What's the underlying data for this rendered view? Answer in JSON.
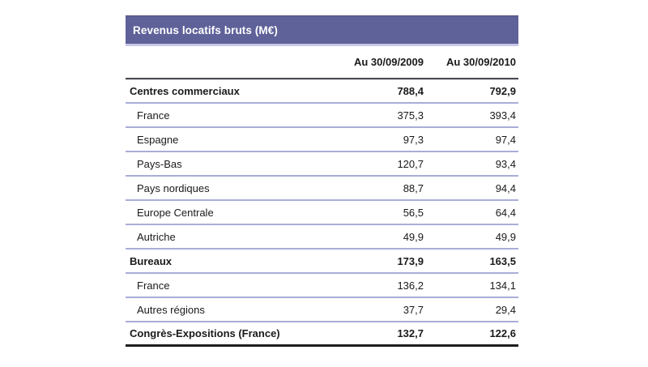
{
  "table": {
    "title": "Revenus locatifs bruts (M€)",
    "columns": [
      "Au 30/09/2009",
      "Au 30/09/2010"
    ],
    "rows": [
      {
        "label": "Centres commerciaux",
        "v2009": "788,4",
        "v2010": "792,9",
        "bold": true,
        "indent": false
      },
      {
        "label": "France",
        "v2009": "375,3",
        "v2010": "393,4",
        "bold": false,
        "indent": true
      },
      {
        "label": "Espagne",
        "v2009": "97,3",
        "v2010": "97,4",
        "bold": false,
        "indent": true
      },
      {
        "label": "Pays-Bas",
        "v2009": "120,7",
        "v2010": "93,4",
        "bold": false,
        "indent": true
      },
      {
        "label": "Pays nordiques",
        "v2009": "88,7",
        "v2010": "94,4",
        "bold": false,
        "indent": true
      },
      {
        "label": "Europe Centrale",
        "v2009": "56,5",
        "v2010": "64,4",
        "bold": false,
        "indent": true
      },
      {
        "label": "Autriche",
        "v2009": "49,9",
        "v2010": "49,9",
        "bold": false,
        "indent": true
      },
      {
        "label": "Bureaux",
        "v2009": "173,9",
        "v2010": "163,5",
        "bold": true,
        "indent": false
      },
      {
        "label": "France",
        "v2009": "136,2",
        "v2010": "134,1",
        "bold": false,
        "indent": true
      },
      {
        "label": "Autres régions",
        "v2009": "37,7",
        "v2010": "29,4",
        "bold": false,
        "indent": true
      },
      {
        "label": "Congrès-Expositions (France)",
        "v2009": "132,7",
        "v2010": "122,6",
        "bold": true,
        "indent": false
      }
    ]
  },
  "colors": {
    "title_bar_background": "#5f6199",
    "title_bar_border_top": "#50507c",
    "title_bar_border_bottom": "#c7c9e6",
    "title_text": "#ffffff",
    "header_rule": "#4b4b4b",
    "row_separator": "#a9aed8",
    "bottom_rule": "#1d1d1d",
    "body_text": "#1a1a1a"
  },
  "chart_data": {
    "type": "table",
    "title": "Revenus locatifs bruts (M€)",
    "columns": [
      "Au 30/09/2009",
      "Au 30/09/2010"
    ],
    "unit": "M€",
    "rows": [
      {
        "label": "Centres commerciaux",
        "values": [
          788.4,
          792.9
        ],
        "group_header": true
      },
      {
        "label": "France",
        "values": [
          375.3,
          393.4
        ],
        "group_header": false
      },
      {
        "label": "Espagne",
        "values": [
          97.3,
          97.4
        ],
        "group_header": false
      },
      {
        "label": "Pays-Bas",
        "values": [
          120.7,
          93.4
        ],
        "group_header": false
      },
      {
        "label": "Pays nordiques",
        "values": [
          88.7,
          94.4
        ],
        "group_header": false
      },
      {
        "label": "Europe Centrale",
        "values": [
          56.5,
          64.4
        ],
        "group_header": false
      },
      {
        "label": "Autriche",
        "values": [
          49.9,
          49.9
        ],
        "group_header": false
      },
      {
        "label": "Bureaux",
        "values": [
          173.9,
          163.5
        ],
        "group_header": true
      },
      {
        "label": "France",
        "values": [
          136.2,
          134.1
        ],
        "group_header": false
      },
      {
        "label": "Autres régions",
        "values": [
          37.7,
          29.4
        ],
        "group_header": false
      },
      {
        "label": "Congrès-Expositions (France)",
        "values": [
          132.7,
          122.6
        ],
        "group_header": true
      }
    ]
  }
}
